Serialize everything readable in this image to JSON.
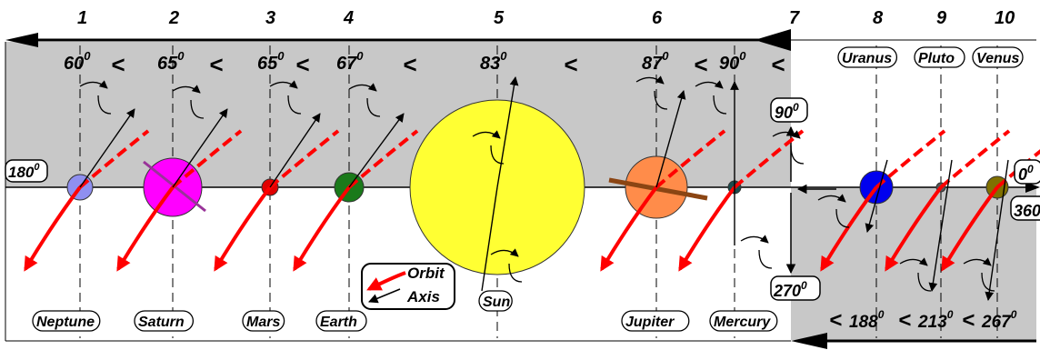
{
  "column_numbers": [
    "1",
    "2",
    "3",
    "4",
    "5",
    "6",
    "7",
    "8",
    "9",
    "10"
  ],
  "angles_top": [
    {
      "value": "60",
      "sup": "0"
    },
    {
      "value": "65",
      "sup": "0"
    },
    {
      "value": "65",
      "sup": "0"
    },
    {
      "value": "67",
      "sup": "0"
    },
    {
      "value": "83",
      "sup": "0"
    },
    {
      "value": "87",
      "sup": "0"
    },
    {
      "value": "90",
      "sup": "0"
    }
  ],
  "lt_symbol": "<",
  "angles_bottom": [
    {
      "value": "188",
      "sup": "0"
    },
    {
      "value": "213",
      "sup": "0"
    },
    {
      "value": "267",
      "sup": "0"
    }
  ],
  "reference_angles": {
    "deg90": {
      "value": "90",
      "sup": "0"
    },
    "deg180": {
      "value": "180",
      "sup": "0"
    },
    "deg270": {
      "value": "270",
      "sup": "0"
    },
    "deg0": {
      "value": "0",
      "sup": "0"
    },
    "deg360": {
      "value": "360",
      "sup": "0"
    }
  },
  "planets": [
    {
      "name": "Neptune",
      "color": "#8f8ff0"
    },
    {
      "name": "Saturn",
      "color": "#ff00ff"
    },
    {
      "name": "Mars",
      "color": "#e00000"
    },
    {
      "name": "Earth",
      "color": "#1a7a1a"
    },
    {
      "name": "Sun",
      "color": "#ffff33"
    },
    {
      "name": "Jupiter",
      "color": "#ff8c4a"
    },
    {
      "name": "Mercury",
      "color": "#1a4d4d"
    },
    {
      "name": "Uranus",
      "color": "#0000ee"
    },
    {
      "name": "Pluto",
      "color": "#555555"
    },
    {
      "name": "Venus",
      "color": "#807000"
    }
  ],
  "legend": {
    "orbit": "Orbit",
    "axis": "Axis"
  },
  "colors": {
    "panel": "#c8c8c8",
    "orbit": "#ff0000",
    "axis": "#000000"
  }
}
